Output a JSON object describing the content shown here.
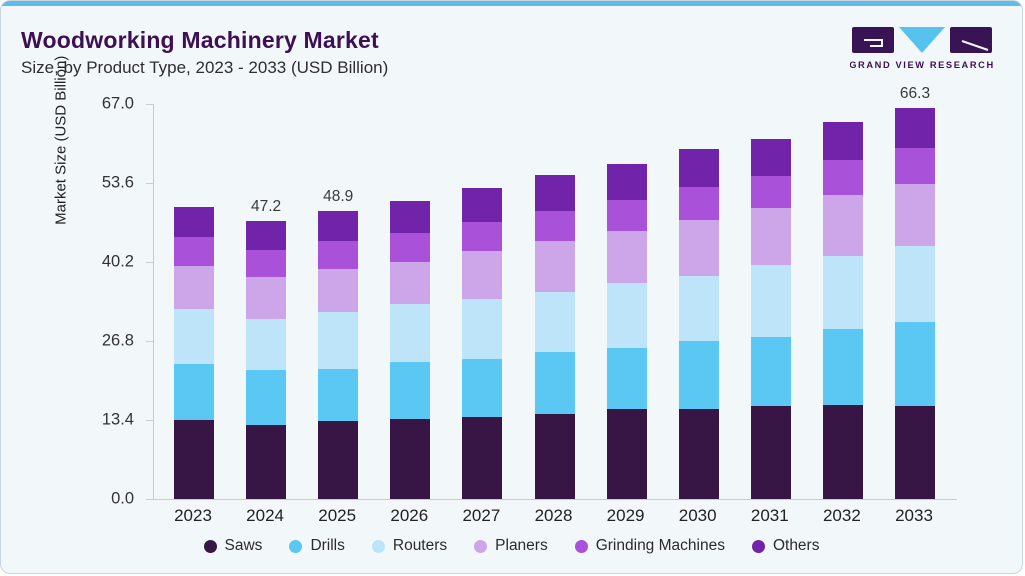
{
  "header": {
    "title": "Woodworking Machinery Market",
    "subtitle": "Size, by Product Type, 2023 - 2033 (USD Billion)",
    "logo_text": "GRAND VIEW RESEARCH"
  },
  "colors": {
    "accent_bar": "#5fbce9",
    "title_text": "#3d1053",
    "background": "#f2f7fa",
    "frame_border": "#c9d5e0",
    "axis_line": "#c4cdd5",
    "logo_dark": "#381454",
    "logo_blue": "#55c3ee"
  },
  "chart_data": {
    "type": "bar",
    "stacked": true,
    "title": "Woodworking Machinery Market Size, by Product Type, 2023 - 2033 (USD Billion)",
    "xlabel": "",
    "ylabel": "Market Size (USD Billion)",
    "ylim": [
      0,
      67
    ],
    "yticks": [
      0.0,
      13.4,
      26.8,
      40.2,
      53.6,
      67.0
    ],
    "grid": false,
    "legend_position": "bottom",
    "categories": [
      "2023",
      "2024",
      "2025",
      "2026",
      "2027",
      "2028",
      "2029",
      "2030",
      "2031",
      "2032",
      "2033"
    ],
    "series": [
      {
        "name": "Saws",
        "color": "#371545",
        "values": [
          13.4,
          12.6,
          13.2,
          13.5,
          13.9,
          14.4,
          15.2,
          15.3,
          15.7,
          16.0,
          15.8
        ]
      },
      {
        "name": "Drills",
        "color": "#5bc8f3",
        "values": [
          9.5,
          9.2,
          8.9,
          9.8,
          9.9,
          10.5,
          10.5,
          11.5,
          11.8,
          12.8,
          14.2
        ]
      },
      {
        "name": "Routers",
        "color": "#bde4f8",
        "values": [
          9.3,
          8.8,
          9.7,
          9.7,
          10.1,
          10.2,
          11.0,
          11.1,
          12.2,
          12.4,
          12.9
        ]
      },
      {
        "name": "Planers",
        "color": "#cda6e9",
        "values": [
          7.4,
          7.0,
          7.2,
          7.2,
          8.1,
          8.6,
          8.8,
          9.4,
          9.7,
          10.4,
          10.6
        ]
      },
      {
        "name": "Grinding Machines",
        "color": "#a951d9",
        "values": [
          4.8,
          4.7,
          4.7,
          5.0,
          5.0,
          5.1,
          5.3,
          5.7,
          5.4,
          5.9,
          6.1
        ]
      },
      {
        "name": "Others",
        "color": "#7124aa",
        "values": [
          5.2,
          4.9,
          5.2,
          5.3,
          5.8,
          6.1,
          6.1,
          6.3,
          6.3,
          6.5,
          6.7
        ]
      }
    ],
    "totals": [
      49.6,
      47.2,
      48.9,
      50.5,
      52.8,
      54.9,
      56.9,
      59.3,
      61.1,
      64.0,
      66.3
    ],
    "bar_value_labels": {
      "2024": "47.2",
      "2025": "48.9",
      "2033": "66.3"
    }
  }
}
